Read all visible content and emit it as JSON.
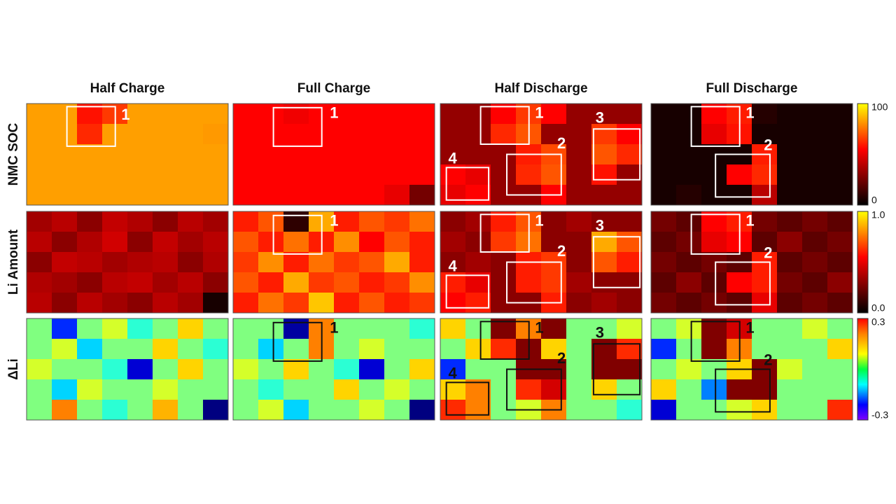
{
  "figure": {
    "columns": [
      "Half Charge",
      "Full Charge",
      "Half Discharge",
      "Full Discharge"
    ],
    "rows": [
      {
        "label": "NMC SOC",
        "colormap": "hot",
        "colorbar": {
          "lim": [
            0,
            100
          ],
          "ticks": [
            0,
            100
          ]
        },
        "panels": [
          {
            "boxes": [
              "1"
            ],
            "cells": [
              [
                83,
                83,
                58,
                65,
                83,
                83,
                83,
                83
              ],
              [
                83,
                83,
                62,
                83,
                83,
                83,
                83,
                82
              ],
              [
                83,
                83,
                83,
                83,
                83,
                83,
                83,
                83
              ],
              [
                83,
                83,
                83,
                83,
                83,
                83,
                83,
                83
              ],
              [
                83,
                83,
                83,
                83,
                83,
                83,
                83,
                83
              ]
            ]
          },
          {
            "boxes": [
              "1"
            ],
            "cells": [
              [
                55,
                55,
                52,
                55,
                55,
                55,
                55,
                55
              ],
              [
                55,
                55,
                55,
                55,
                55,
                55,
                55,
                55
              ],
              [
                55,
                55,
                55,
                55,
                55,
                55,
                55,
                55
              ],
              [
                55,
                55,
                55,
                55,
                55,
                55,
                55,
                55
              ],
              [
                55,
                55,
                55,
                55,
                55,
                55,
                50,
                25
              ]
            ]
          },
          {
            "boxes": [
              "1",
              "2",
              "3",
              "4"
            ],
            "cells": [
              [
                32,
                32,
                55,
                65,
                55,
                32,
                32,
                32
              ],
              [
                32,
                32,
                62,
                70,
                32,
                32,
                65,
                55
              ],
              [
                32,
                32,
                32,
                60,
                68,
                32,
                70,
                62
              ],
              [
                55,
                50,
                32,
                62,
                70,
                32,
                58,
                32
              ],
              [
                50,
                55,
                32,
                32,
                55,
                32,
                32,
                32
              ]
            ]
          },
          {
            "boxes": [
              "1",
              "2"
            ],
            "cells": [
              [
                5,
                5,
                55,
                60,
                8,
                5,
                5,
                5
              ],
              [
                5,
                5,
                50,
                58,
                5,
                5,
                5,
                5
              ],
              [
                5,
                5,
                5,
                5,
                60,
                5,
                5,
                5
              ],
              [
                5,
                5,
                5,
                55,
                62,
                5,
                5,
                5
              ],
              [
                5,
                8,
                5,
                5,
                40,
                5,
                5,
                5
              ]
            ]
          }
        ]
      },
      {
        "label": "Li Amount",
        "colormap": "hot",
        "colorbar": {
          "lim": [
            0,
            1
          ],
          "ticks": [
            {
              "value": 0,
              "label": "0.0"
            },
            {
              "value": 1,
              "label": "1.0"
            }
          ]
        },
        "panels": [
          {
            "boxes": [],
            "cells": [
              [
                0.35,
                0.4,
                0.3,
                0.42,
                0.38,
                0.3,
                0.4,
                0.35
              ],
              [
                0.4,
                0.3,
                0.38,
                0.45,
                0.3,
                0.42,
                0.35,
                0.4
              ],
              [
                0.3,
                0.42,
                0.4,
                0.35,
                0.38,
                0.4,
                0.3,
                0.38
              ],
              [
                0.38,
                0.35,
                0.3,
                0.4,
                0.42,
                0.35,
                0.4,
                0.3
              ],
              [
                0.4,
                0.3,
                0.4,
                0.35,
                0.3,
                0.4,
                0.35,
                0.05
              ]
            ]
          },
          {
            "boxes": [
              "1"
            ],
            "cells": [
              [
                0.6,
                0.7,
                0.1,
                0.85,
                0.6,
                0.7,
                0.65,
                0.75
              ],
              [
                0.7,
                0.6,
                0.75,
                0.6,
                0.8,
                0.55,
                0.7,
                0.6
              ],
              [
                0.65,
                0.8,
                0.6,
                0.75,
                0.65,
                0.7,
                0.85,
                0.6
              ],
              [
                0.7,
                0.6,
                0.85,
                0.65,
                0.7,
                0.6,
                0.65,
                0.8
              ],
              [
                0.6,
                0.75,
                0.65,
                0.9,
                0.6,
                0.7,
                0.6,
                0.65
              ]
            ]
          },
          {
            "boxes": [
              "1",
              "2",
              "3",
              "4"
            ],
            "cells": [
              [
                0.3,
                0.35,
                0.6,
                0.7,
                0.3,
                0.35,
                0.3,
                0.3
              ],
              [
                0.35,
                0.3,
                0.65,
                0.75,
                0.3,
                0.3,
                0.85,
                0.7
              ],
              [
                0.3,
                0.35,
                0.3,
                0.6,
                0.65,
                0.3,
                0.7,
                0.6
              ],
              [
                0.6,
                0.5,
                0.3,
                0.6,
                0.65,
                0.35,
                0.3,
                0.3
              ],
              [
                0.55,
                0.6,
                0.3,
                0.3,
                0.6,
                0.3,
                0.35,
                0.3
              ]
            ]
          },
          {
            "boxes": [
              "1",
              "2"
            ],
            "cells": [
              [
                0.25,
                0.2,
                0.55,
                0.6,
                0.25,
                0.2,
                0.25,
                0.2
              ],
              [
                0.2,
                0.25,
                0.5,
                0.55,
                0.2,
                0.3,
                0.2,
                0.25
              ],
              [
                0.25,
                0.2,
                0.25,
                0.2,
                0.6,
                0.2,
                0.25,
                0.2
              ],
              [
                0.2,
                0.3,
                0.2,
                0.55,
                0.6,
                0.25,
                0.2,
                0.3
              ],
              [
                0.25,
                0.2,
                0.25,
                0.2,
                0.5,
                0.2,
                0.25,
                0.2
              ]
            ]
          }
        ]
      },
      {
        "label": "ΔLi",
        "colormap": "jet",
        "colorbar": {
          "lim": [
            -0.3,
            0.3
          ],
          "ticks": [
            -0.3,
            0.3
          ]
        },
        "panels": [
          {
            "boxes": [],
            "cells": [
              [
                0,
                -0.2,
                0,
                0.05,
                -0.05,
                0,
                0.1,
                0
              ],
              [
                0,
                0.05,
                -0.1,
                0,
                0,
                0.1,
                0,
                -0.05
              ],
              [
                0.05,
                0,
                0,
                -0.05,
                -0.25,
                0,
                0.1,
                0
              ],
              [
                0,
                -0.1,
                0.05,
                0,
                0,
                0.05,
                0,
                0
              ],
              [
                0,
                0.15,
                0,
                -0.05,
                0,
                0.12,
                0,
                -0.3
              ]
            ]
          },
          {
            "boxes": [
              "1"
            ],
            "cells": [
              [
                0,
                0,
                -0.28,
                0.15,
                0,
                0,
                0,
                -0.05
              ],
              [
                0,
                -0.1,
                0,
                0.15,
                0,
                0.05,
                0,
                0
              ],
              [
                0.05,
                0,
                0.1,
                0,
                -0.05,
                -0.25,
                0,
                0.1
              ],
              [
                0,
                -0.05,
                0,
                0,
                0.1,
                0,
                0.05,
                0
              ],
              [
                0,
                0.05,
                -0.1,
                0,
                0,
                0.05,
                0,
                -0.3
              ]
            ]
          },
          {
            "boxes": [
              "1",
              "2",
              "3",
              "4"
            ],
            "cells": [
              [
                0.1,
                0,
                0.3,
                0.15,
                0.3,
                0,
                0,
                0.05
              ],
              [
                0,
                0.1,
                0.2,
                0.3,
                0.1,
                0,
                0.3,
                0.2
              ],
              [
                -0.2,
                0,
                0,
                0.3,
                0.3,
                0,
                0.3,
                0.3
              ],
              [
                0.1,
                0.15,
                0,
                0.2,
                0.25,
                0,
                0.1,
                0
              ],
              [
                0.2,
                0.15,
                0,
                0.05,
                0.15,
                0,
                0,
                -0.05
              ]
            ]
          },
          {
            "boxes": [
              "1",
              "2"
            ],
            "cells": [
              [
                0,
                0.05,
                0.3,
                0.25,
                0,
                0,
                0.05,
                0
              ],
              [
                -0.2,
                0,
                0.3,
                0.15,
                0,
                0,
                0,
                0.1
              ],
              [
                0,
                0.05,
                0,
                0.1,
                0.3,
                0.05,
                0,
                0
              ],
              [
                0.1,
                0,
                -0.15,
                0.3,
                0.3,
                0,
                0,
                0
              ],
              [
                -0.25,
                0,
                0,
                0.05,
                0.1,
                0,
                0,
                0.2
              ]
            ]
          }
        ]
      }
    ]
  }
}
